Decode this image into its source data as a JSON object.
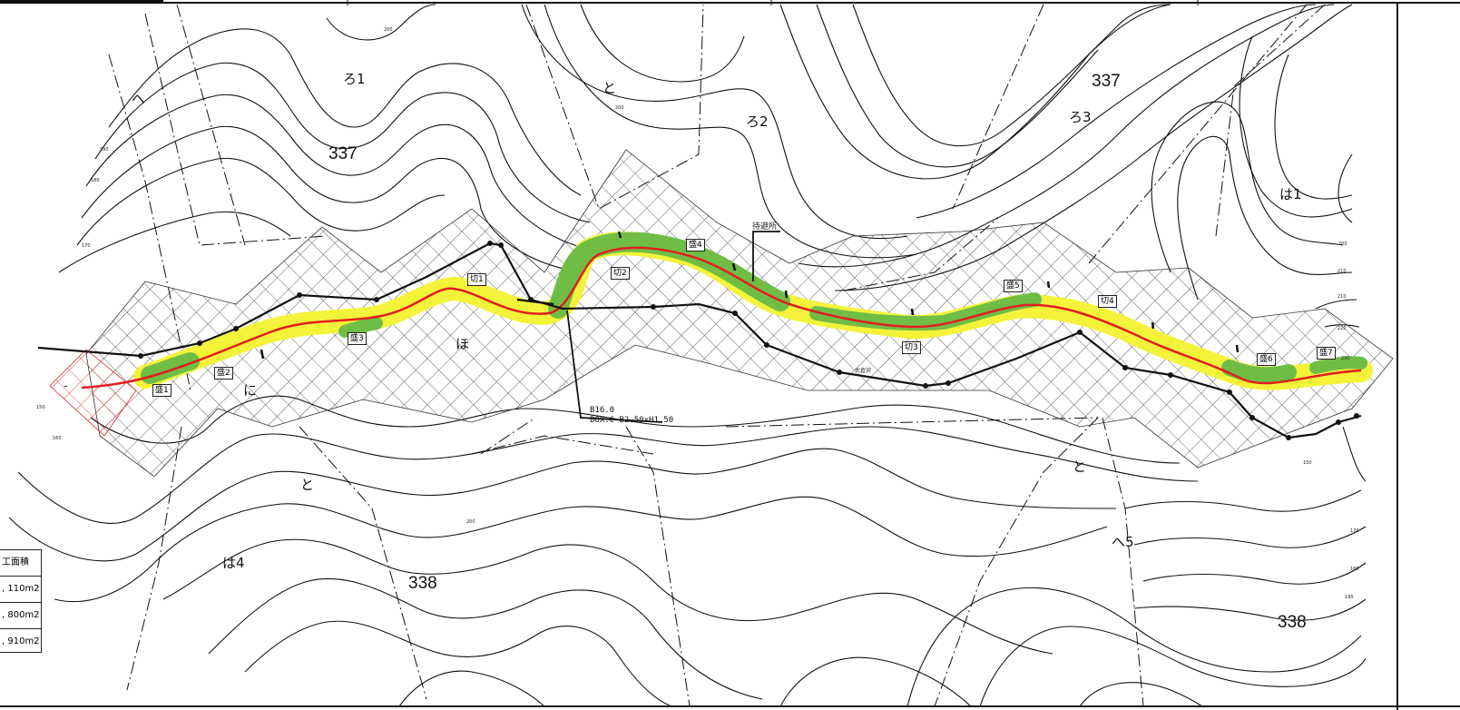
{
  "map": {
    "lot_numbers": [
      "337",
      "337",
      "338",
      "338"
    ],
    "subdivisions": [
      "ろ1",
      "と",
      "ろ2",
      "ろ3",
      "へ",
      "は1",
      "ほ",
      "に",
      "と",
      "と",
      "は4",
      "へ5"
    ],
    "sections": [
      "盛1",
      "盛2",
      "盛3",
      "切1",
      "切2",
      "盛4",
      "盛5",
      "切3",
      "切4",
      "盛6",
      "盛7"
    ],
    "facility_label": "待避所",
    "culvert_note": [
      "B16.0",
      "BOX.C B2.50×H1.50"
    ],
    "stream_name": "大倉沢",
    "contour_labels": [
      "200",
      "200",
      "190",
      "180",
      "170",
      "200",
      "210",
      "210",
      "220",
      "230",
      "150",
      "160",
      "150",
      "200",
      "170",
      "180",
      "190"
    ],
    "start_marker": "-"
  },
  "legend": {
    "header": "工面積",
    "rows": [
      ", 110m2",
      ", 800m2",
      ", 910m2"
    ]
  },
  "colors": {
    "road_centerline": "#e01e1e",
    "cut_area": "#f3f33a",
    "fill_area": "#6fbd45",
    "grid": "#333333",
    "red_grid": "#e02020",
    "contour": "#111111"
  }
}
